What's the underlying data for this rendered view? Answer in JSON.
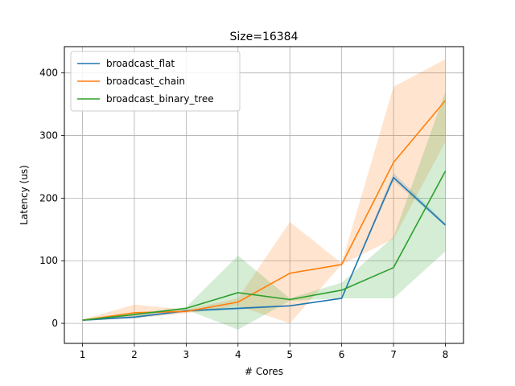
{
  "chart_data": {
    "type": "line",
    "title": "Size=16384",
    "xlabel": "# Cores",
    "ylabel": "Latency (us)",
    "x": [
      1,
      2,
      3,
      4,
      5,
      6,
      7,
      8
    ],
    "xlim": [
      0.65,
      8.35
    ],
    "ylim": [
      -32,
      442
    ],
    "xticks": [
      1,
      2,
      3,
      4,
      5,
      6,
      7,
      8
    ],
    "yticks": [
      0,
      100,
      200,
      300,
      400
    ],
    "grid": true,
    "legend_position": "upper-left",
    "series": [
      {
        "name": "broadcast_flat",
        "color": "#1f77b4",
        "values": [
          5,
          10,
          20,
          24,
          28,
          40,
          233,
          157
        ],
        "lower": [
          5,
          8,
          18,
          22,
          27,
          39,
          228,
          155
        ],
        "upper": [
          6,
          12,
          22,
          26,
          29,
          41,
          240,
          160
        ]
      },
      {
        "name": "broadcast_chain",
        "color": "#ff7f0e",
        "values": [
          5,
          17,
          19,
          34,
          80,
          94,
          257,
          356
        ],
        "lower": [
          4,
          8,
          16,
          28,
          0,
          94,
          135,
          290
        ],
        "upper": [
          6,
          30,
          22,
          40,
          162,
          96,
          378,
          422
        ]
      },
      {
        "name": "broadcast_binary_tree",
        "color": "#2ca02c",
        "values": [
          5,
          14,
          24,
          49,
          38,
          53,
          89,
          243
        ],
        "lower": [
          4,
          12,
          22,
          -10,
          36,
          40,
          40,
          115
        ],
        "upper": [
          6,
          16,
          26,
          108,
          40,
          65,
          138,
          370
        ]
      }
    ]
  }
}
